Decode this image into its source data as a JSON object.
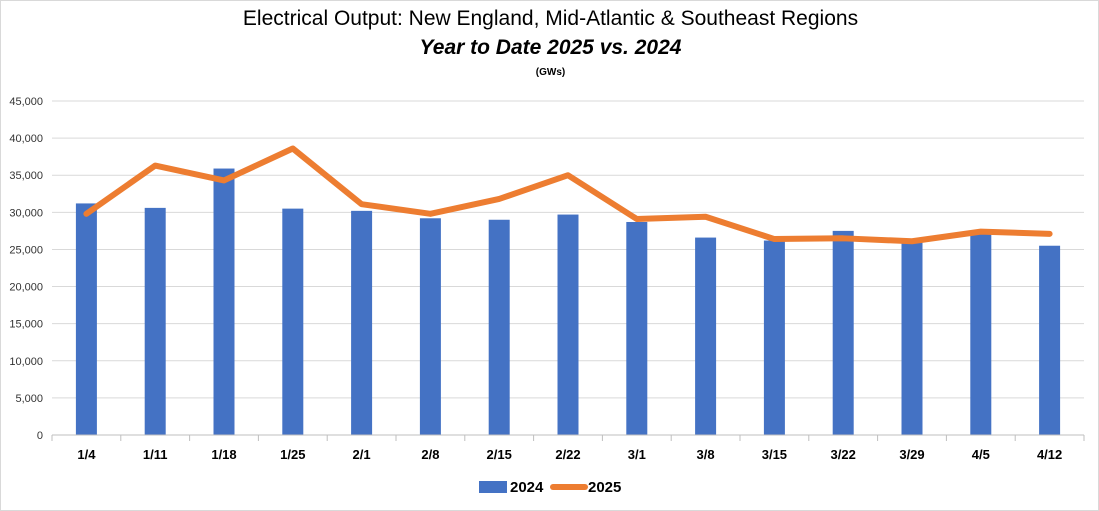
{
  "chart_data": {
    "type": "bar",
    "title": "Electrical Output:  New England, Mid-Atlantic & Southeast Regions",
    "subtitle": "Year to Date 2025 vs. 2024",
    "unit_label": "(GWs)",
    "categories": [
      "1/4",
      "1/11",
      "1/18",
      "1/25",
      "2/1",
      "2/8",
      "2/15",
      "2/22",
      "3/1",
      "3/8",
      "3/15",
      "3/22",
      "3/29",
      "4/5",
      "4/12"
    ],
    "series": [
      {
        "name": "2024",
        "type": "bar",
        "color": "#4472c4",
        "values": [
          31200,
          30600,
          35900,
          30500,
          30200,
          29200,
          29000,
          29700,
          28700,
          26600,
          26200,
          27500,
          26000,
          27200,
          25500
        ]
      },
      {
        "name": "2025",
        "type": "line",
        "color": "#ed7d31",
        "values": [
          29800,
          36300,
          34300,
          38600,
          31100,
          29800,
          31800,
          35000,
          29100,
          29400,
          26400,
          26500,
          26100,
          27400,
          27100
        ]
      }
    ],
    "ylim": [
      0,
      45000
    ],
    "yticks": [
      0,
      5000,
      10000,
      15000,
      20000,
      25000,
      30000,
      35000,
      40000,
      45000
    ],
    "ytick_labels": [
      "0",
      "5,000",
      "10,000",
      "15,000",
      "20,000",
      "25,000",
      "30,000",
      "35,000",
      "40,000",
      "45,000"
    ],
    "grid": true,
    "legend_position": "bottom"
  }
}
